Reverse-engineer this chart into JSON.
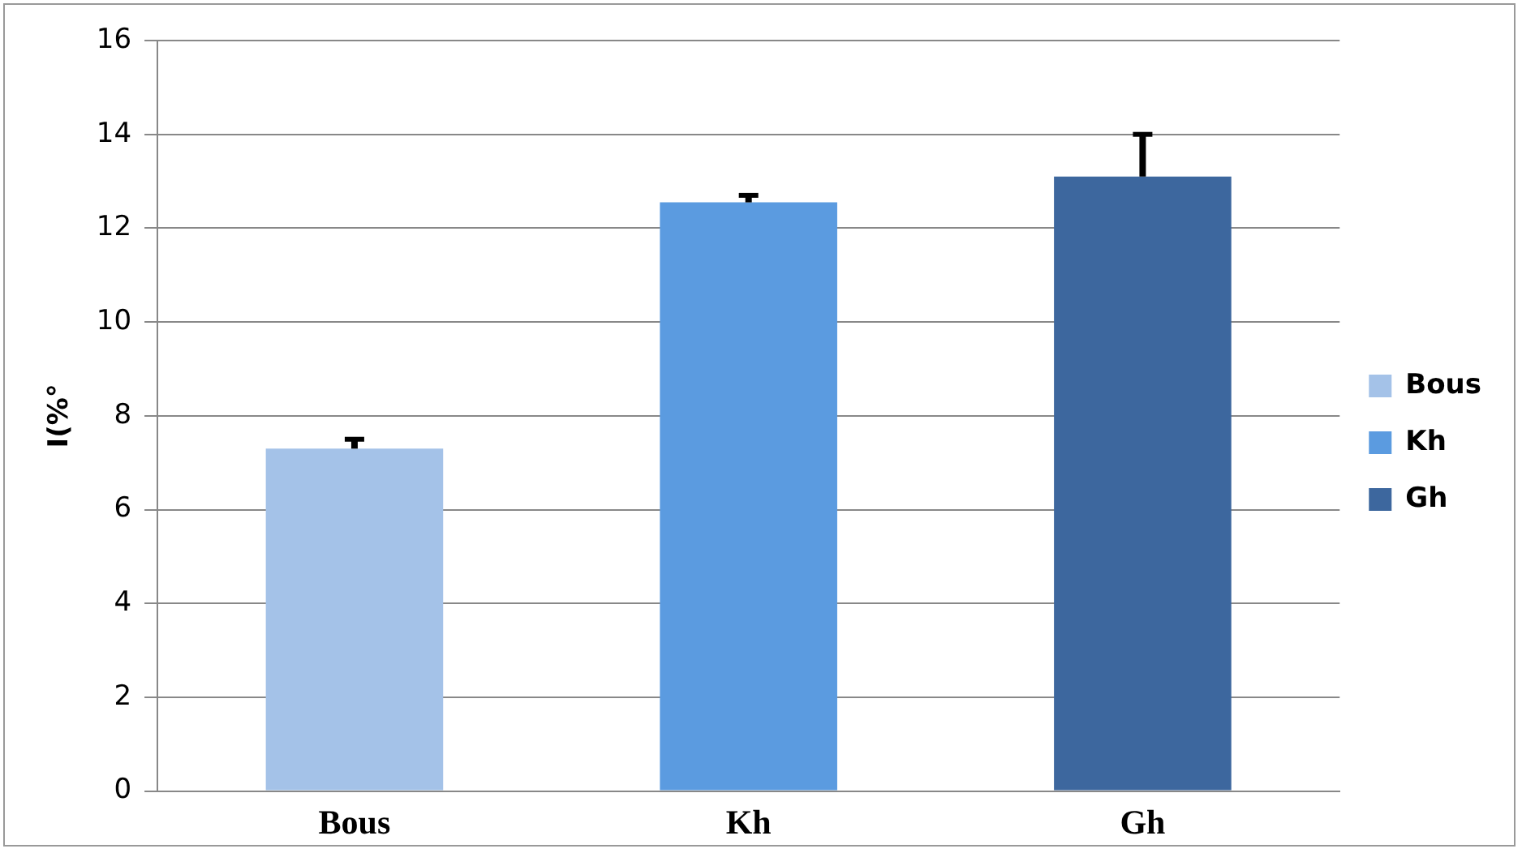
{
  "chart_data": {
    "type": "bar",
    "ylabel": "I(%°",
    "categories": [
      "Bous",
      "Kh",
      "Gh"
    ],
    "series": [
      {
        "name": "Bous",
        "color": "#a4c2e8",
        "values": [
          7.3,
          null,
          null
        ],
        "errors": [
          [
            7.3,
            7.5
          ],
          null,
          null
        ]
      },
      {
        "name": "Kh",
        "color": "#5b9be0",
        "values": [
          null,
          12.55,
          null
        ],
        "errors": [
          null,
          [
            12.55,
            12.7
          ],
          null
        ]
      },
      {
        "name": "Gh",
        "color": "#3d679e",
        "values": [
          null,
          null,
          13.1
        ],
        "errors": [
          null,
          null,
          [
            13.1,
            14.0
          ]
        ]
      }
    ],
    "ylim": [
      0,
      16
    ],
    "yticks": [
      0,
      2,
      4,
      6,
      8,
      10,
      12,
      14,
      16
    ],
    "grid": "y",
    "legend": "right"
  }
}
